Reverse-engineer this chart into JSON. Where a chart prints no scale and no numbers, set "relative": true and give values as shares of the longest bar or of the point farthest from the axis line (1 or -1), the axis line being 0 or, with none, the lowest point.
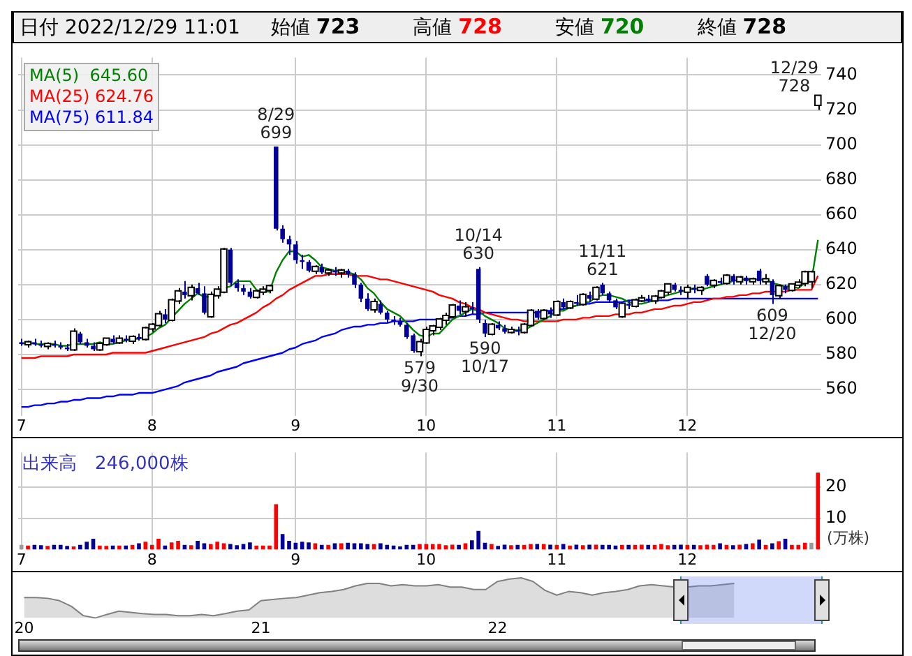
{
  "chart_data": [
    {
      "type": "other",
      "annotations": [
        "日付 2022/12/29 11:01",
        "始値 723",
        "高値 728",
        "安値 720",
        "終値 728"
      ],
      "colors": [
        "#000000",
        "#000000",
        "#ff0000",
        "#008000",
        "#000000"
      ]
    },
    {
      "type": "candlestick",
      "categories": [
        "7",
        null,
        null,
        null,
        null,
        null,
        null,
        null,
        null,
        null,
        null,
        null,
        null,
        null,
        null,
        null,
        null,
        null,
        null,
        null,
        "8",
        null,
        null,
        null,
        null,
        null,
        null,
        null,
        null,
        null,
        null,
        null,
        null,
        null,
        null,
        null,
        null,
        null,
        null,
        null,
        null,
        null,
        "9",
        null,
        null,
        null,
        null,
        null,
        null,
        null,
        null,
        null,
        null,
        null,
        null,
        null,
        null,
        null,
        null,
        null,
        null,
        null,
        "10",
        null,
        null,
        null,
        null,
        null,
        null,
        null,
        null,
        null,
        null,
        null,
        null,
        null,
        null,
        null,
        null,
        null,
        null,
        null,
        "11",
        null,
        null,
        null,
        null,
        null,
        null,
        null,
        null,
        null,
        null,
        null,
        null,
        null,
        null,
        null,
        null,
        null,
        null,
        null,
        "12",
        null,
        null,
        null,
        null,
        null,
        null,
        null,
        null,
        null,
        null,
        null,
        null,
        null,
        null,
        null,
        null,
        null,
        null,
        null,
        null
      ],
      "ohlc": [
        [
          587,
          589,
          585,
          586
        ],
        [
          586,
          588,
          584,
          587
        ],
        [
          587,
          589,
          585,
          586
        ],
        [
          586,
          588,
          584,
          585
        ],
        [
          585,
          587,
          583,
          586
        ],
        [
          586,
          588,
          584,
          585
        ],
        [
          585,
          587,
          583,
          584
        ],
        [
          584,
          586,
          582,
          583
        ],
        [
          583,
          595,
          582,
          593
        ],
        [
          592,
          593,
          586,
          587
        ],
        [
          587,
          589,
          584,
          585
        ],
        [
          585,
          587,
          582,
          583
        ],
        [
          583,
          587,
          582,
          586
        ],
        [
          586,
          589,
          585,
          589
        ],
        [
          589,
          591,
          586,
          587
        ],
        [
          587,
          591,
          586,
          589
        ],
        [
          589,
          591,
          587,
          588
        ],
        [
          588,
          591,
          586,
          590
        ],
        [
          590,
          592,
          588,
          589
        ],
        [
          589,
          596,
          588,
          595
        ],
        [
          595,
          598,
          593,
          597
        ],
        [
          597,
          605,
          596,
          603
        ],
        [
          603,
          606,
          598,
          600
        ],
        [
          600,
          612,
          599,
          611
        ],
        [
          611,
          618,
          609,
          616
        ],
        [
          616,
          622,
          612,
          614
        ],
        [
          614,
          620,
          611,
          618
        ],
        [
          618,
          621,
          614,
          615
        ],
        [
          615,
          619,
          603,
          604
        ],
        [
          602,
          616,
          601,
          614
        ],
        [
          614,
          619,
          612,
          617
        ],
        [
          616,
          641,
          615,
          640
        ],
        [
          640,
          641,
          619,
          621
        ],
        [
          621,
          623,
          616,
          618
        ],
        [
          618,
          620,
          614,
          616
        ],
        [
          616,
          618,
          612,
          613
        ],
        [
          613,
          617,
          612,
          616
        ],
        [
          616,
          619,
          614,
          617
        ],
        [
          617,
          620,
          615,
          619
        ],
        [
          699,
          699,
          651,
          652
        ],
        [
          652,
          654,
          644,
          646
        ],
        [
          646,
          648,
          637,
          643
        ],
        [
          643,
          645,
          632,
          634
        ],
        [
          634,
          637,
          629,
          633
        ],
        [
          633,
          634,
          627,
          628
        ],
        [
          628,
          631,
          626,
          630
        ],
        [
          630,
          632,
          626,
          627
        ],
        [
          627,
          629,
          625,
          628
        ],
        [
          628,
          630,
          625,
          627
        ],
        [
          627,
          629,
          624,
          628
        ],
        [
          628,
          629,
          624,
          626
        ],
        [
          626,
          627,
          618,
          620
        ],
        [
          620,
          621,
          610,
          612
        ],
        [
          612,
          615,
          605,
          606
        ],
        [
          606,
          612,
          604,
          610
        ],
        [
          609,
          611,
          603,
          604
        ],
        [
          604,
          605,
          598,
          600
        ],
        [
          600,
          602,
          597,
          599
        ],
        [
          599,
          601,
          596,
          597
        ],
        [
          597,
          598,
          589,
          590
        ],
        [
          591,
          592,
          581,
          582
        ],
        [
          582,
          589,
          579,
          587
        ],
        [
          587,
          596,
          586,
          594
        ],
        [
          594,
          597,
          591,
          596
        ],
        [
          596,
          601,
          594,
          600
        ],
        [
          600,
          604,
          597,
          602
        ],
        [
          602,
          609,
          601,
          608
        ],
        [
          608,
          611,
          603,
          605
        ],
        [
          605,
          610,
          602,
          607
        ],
        [
          607,
          610,
          603,
          606
        ],
        [
          629,
          630,
          598,
          600
        ],
        [
          598,
          600,
          590,
          592
        ],
        [
          592,
          598,
          591,
          597
        ],
        [
          597,
          599,
          594,
          595
        ],
        [
          595,
          597,
          592,
          593
        ],
        [
          593,
          596,
          592,
          594
        ],
        [
          594,
          596,
          591,
          593
        ],
        [
          593,
          598,
          592,
          597
        ],
        [
          597,
          606,
          596,
          605
        ],
        [
          605,
          606,
          600,
          601
        ],
        [
          601,
          606,
          600,
          605
        ],
        [
          605,
          607,
          601,
          603
        ],
        [
          603,
          611,
          602,
          610
        ],
        [
          610,
          612,
          606,
          607
        ],
        [
          607,
          611,
          606,
          610
        ],
        [
          610,
          614,
          608,
          609
        ],
        [
          609,
          615,
          608,
          614
        ],
        [
          614,
          616,
          610,
          612
        ],
        [
          612,
          619,
          611,
          618
        ],
        [
          620,
          621,
          614,
          615
        ],
        [
          615,
          616,
          610,
          611
        ],
        [
          611,
          612,
          606,
          607
        ],
        [
          602,
          610,
          601,
          609
        ],
        [
          609,
          611,
          606,
          608
        ],
        [
          608,
          612,
          607,
          611
        ],
        [
          611,
          614,
          610,
          612
        ],
        [
          612,
          614,
          610,
          611
        ],
        [
          611,
          614,
          609,
          613
        ],
        [
          613,
          617,
          612,
          616
        ],
        [
          616,
          620,
          614,
          620
        ],
        [
          620,
          621,
          616,
          617
        ],
        [
          617,
          619,
          614,
          616
        ],
        [
          616,
          620,
          612,
          618
        ],
        [
          618,
          620,
          615,
          617
        ],
        [
          617,
          619,
          614,
          618
        ],
        [
          625,
          626,
          619,
          620
        ],
        [
          620,
          623,
          618,
          622
        ],
        [
          622,
          624,
          620,
          621
        ],
        [
          621,
          626,
          620,
          625
        ],
        [
          625,
          626,
          620,
          622
        ],
        [
          622,
          625,
          620,
          624
        ],
        [
          624,
          625,
          620,
          622
        ],
        [
          622,
          624,
          620,
          623
        ],
        [
          628,
          629,
          620,
          622
        ],
        [
          622,
          626,
          620,
          623
        ],
        [
          622,
          623,
          609,
          614
        ],
        [
          614,
          620,
          612,
          619
        ],
        [
          619,
          620,
          615,
          617
        ],
        [
          617,
          620,
          616,
          620
        ],
        [
          620,
          623,
          618,
          621
        ],
        [
          621,
          628,
          619,
          627
        ],
        [
          622,
          628,
          618,
          627
        ],
        [
          723,
          728,
          720,
          728
        ]
      ],
      "colors": [
        "#000099",
        "#ffffff",
        "#000099",
        "#000099",
        "#ffffff",
        "#000099",
        "#000099",
        "#000099",
        "#ffffff",
        "#000099",
        "#000099",
        "#000099",
        "#ffffff",
        "#ffffff",
        "#000099",
        "#ffffff",
        "#000099",
        "#ffffff",
        "#000099",
        "#ffffff",
        "#ffffff",
        "#ffffff",
        "#000099",
        "#ffffff",
        "#ffffff",
        "#000099",
        "#ffffff",
        "#000099",
        "#000099",
        "#ffffff",
        "#ffffff",
        "#ffffff",
        "#000099",
        "#000099",
        "#000099",
        "#000099",
        "#ffffff",
        "#ffffff",
        "#ffffff",
        "#000099",
        "#000099",
        "#000099",
        "#000099",
        "#000099",
        "#000099",
        "#ffffff",
        "#000099",
        "#ffffff",
        "#000099",
        "#ffffff",
        "#000099",
        "#000099",
        "#000099",
        "#000099",
        "#ffffff",
        "#000099",
        "#000099",
        "#000099",
        "#000099",
        "#000099",
        "#000099",
        "#ffffff",
        "#ffffff",
        "#ffffff",
        "#ffffff",
        "#ffffff",
        "#ffffff",
        "#000099",
        "#ffffff",
        "#000099",
        "#000099",
        "#000099",
        "#ffffff",
        "#000099",
        "#000099",
        "#ffffff",
        "#000099",
        "#ffffff",
        "#ffffff",
        "#000099",
        "#ffffff",
        "#000099",
        "#ffffff",
        "#000099",
        "#ffffff",
        "#000099",
        "#ffffff",
        "#000099",
        "#ffffff",
        "#000099",
        "#000099",
        "#000099",
        "#ffffff",
        "#000099",
        "#ffffff",
        "#ffffff",
        "#000099",
        "#ffffff",
        "#ffffff",
        "#ffffff",
        "#000099",
        "#000099",
        "#ffffff",
        "#000099",
        "#ffffff",
        "#000099",
        "#ffffff",
        "#000099",
        "#ffffff",
        "#000099",
        "#ffffff",
        "#000099",
        "#ffffff",
        "#000099",
        "#ffffff",
        "#000099",
        "#ffffff",
        "#000099",
        "#ffffff",
        "#ffffff",
        "#ffffff",
        "#ffffff",
        "#ffffff"
      ],
      "series": [
        {
          "type": "line",
          "name": "MA(5)  645.60",
          "color": "#008000",
          "values": [
            586,
            587,
            586,
            586,
            586,
            586,
            585,
            585,
            586,
            586,
            586,
            586,
            587,
            586,
            586,
            587,
            588,
            589,
            589,
            590,
            592,
            595,
            597,
            601,
            605,
            609,
            612,
            615,
            613,
            613,
            614,
            618,
            619,
            622,
            622,
            622,
            617,
            616,
            616,
            627,
            634,
            639,
            639,
            636,
            637,
            634,
            630,
            629,
            628,
            628,
            627,
            626,
            623,
            618,
            615,
            610,
            606,
            604,
            602,
            598,
            594,
            591,
            590,
            592,
            592,
            596,
            600,
            602,
            604,
            606,
            605,
            602,
            600,
            598,
            595,
            594,
            594,
            594,
            596,
            598,
            600,
            602,
            605,
            605,
            607,
            608,
            610,
            610,
            613,
            614,
            614,
            613,
            612,
            610,
            609,
            609,
            610,
            611,
            613,
            614,
            615,
            616,
            617,
            618,
            617,
            618,
            619,
            620,
            621,
            622,
            623,
            623,
            623,
            623,
            623,
            621,
            620,
            619,
            619,
            618,
            621,
            622,
            645.6
          ]
        },
        {
          "type": "line",
          "name": "MA(25) 624.76",
          "color": "#ff0000",
          "values": [
            578,
            578,
            578,
            579,
            579,
            579,
            579,
            579,
            580,
            580,
            580,
            580,
            580,
            580,
            581,
            581,
            581,
            581,
            581,
            581,
            582,
            583,
            584,
            585,
            586,
            587,
            588,
            589,
            590,
            592,
            593,
            595,
            597,
            598,
            600,
            602,
            604,
            607,
            609,
            612,
            614,
            617,
            619,
            621,
            623,
            625,
            625,
            626,
            626,
            626,
            626,
            625,
            625,
            625,
            624,
            623,
            623,
            622,
            621,
            620,
            619,
            618,
            617,
            616,
            614,
            613,
            612,
            610,
            609,
            607,
            606,
            604,
            603,
            602,
            601,
            600,
            600,
            599,
            599,
            599,
            599,
            599,
            599,
            600,
            600,
            600,
            601,
            601,
            602,
            602,
            602,
            603,
            603,
            603,
            604,
            604,
            605,
            606,
            606,
            607,
            608,
            608,
            609,
            610,
            610,
            611,
            612,
            612,
            613,
            613,
            614,
            614,
            615,
            615,
            616,
            616,
            616,
            616,
            617,
            617,
            617,
            617,
            625
          ]
        },
        {
          "type": "line",
          "name": "MA(75) 611.84",
          "color": "#0000ff",
          "values": [
            550,
            550,
            551,
            551,
            552,
            552,
            553,
            553,
            554,
            554,
            555,
            555,
            555,
            556,
            556,
            557,
            557,
            557,
            558,
            558,
            558,
            559,
            560,
            561,
            562,
            564,
            565,
            566,
            567,
            568,
            570,
            571,
            572,
            573,
            575,
            576,
            577,
            578,
            579,
            580,
            581,
            583,
            584,
            586,
            587,
            588,
            590,
            591,
            592,
            594,
            595,
            596,
            596,
            597,
            597,
            598,
            598,
            599,
            599,
            599,
            599,
            600,
            600,
            600,
            600,
            601,
            601,
            602,
            602,
            603,
            603,
            604,
            604,
            604,
            604,
            604,
            604,
            604,
            604,
            604,
            605,
            605,
            606,
            606,
            607,
            608,
            609,
            609,
            610,
            610,
            610,
            610,
            610,
            611,
            611,
            611,
            611,
            611,
            611,
            611,
            612,
            612,
            612,
            612,
            612,
            612,
            612,
            612,
            612,
            612,
            612,
            612,
            612,
            612,
            612,
            612,
            612,
            612,
            612,
            612,
            612,
            612,
            612
          ]
        }
      ],
      "ylim": [
        545,
        750
      ],
      "yticks": [
        560,
        580,
        600,
        620,
        640,
        660,
        680,
        700,
        720,
        740
      ],
      "grid": true,
      "legend": "top left",
      "annotations": [
        {
          "text": "8/29\n699",
          "y": 699
        },
        {
          "text": "579\n9/30",
          "y": 579
        },
        {
          "text": "10/14\n630",
          "y": 630
        },
        {
          "text": "590\n10/17",
          "y": 590
        },
        {
          "text": "11/11\n621",
          "y": 621
        },
        {
          "text": "609\n12/20",
          "y": 609
        },
        "12/29\n728"
      ]
    },
    {
      "type": "bar",
      "title": "出来高　246,000株",
      "ylabel": "(万株)",
      "categories": [
        "7",
        null,
        null,
        null,
        null,
        null,
        null,
        null,
        null,
        null,
        null,
        null,
        null,
        null,
        null,
        null,
        null,
        null,
        null,
        null,
        "8",
        null,
        null,
        null,
        null,
        null,
        null,
        null,
        null,
        null,
        null,
        null,
        null,
        null,
        null,
        null,
        null,
        null,
        null,
        null,
        null,
        null,
        "9",
        null,
        null,
        null,
        null,
        null,
        null,
        null,
        null,
        null,
        null,
        null,
        null,
        null,
        null,
        null,
        null,
        null,
        null,
        null,
        "10",
        null,
        null,
        null,
        null,
        null,
        null,
        null,
        null,
        null,
        null,
        null,
        null,
        null,
        null,
        null,
        null,
        null,
        null,
        null,
        "11",
        null,
        null,
        null,
        null,
        null,
        null,
        null,
        null,
        null,
        null,
        null,
        null,
        null,
        null,
        null,
        null,
        null,
        null,
        null,
        "12",
        null,
        null,
        null,
        null,
        null,
        null,
        null,
        null,
        null,
        null,
        null,
        null,
        null,
        null,
        null,
        null,
        null,
        null,
        null,
        null
      ],
      "values": [
        1.5,
        1.3,
        1.5,
        1.4,
        1.2,
        1.5,
        1.5,
        1.2,
        1.0,
        1.5,
        2.5,
        3.5,
        1.3,
        1.2,
        1.3,
        1.3,
        1.3,
        1.5,
        2.0,
        2.5,
        1.5,
        3.5,
        1.3,
        2.3,
        2.8,
        1.5,
        1.4,
        2.8,
        2.0,
        1.8,
        2.5,
        2.0,
        1.8,
        1.4,
        1.8,
        2.3,
        1.3,
        1.3,
        1.3,
        14.5,
        5.0,
        2.8,
        2.2,
        2.5,
        2.3,
        2.0,
        1.5,
        1.5,
        2.0,
        2.0,
        2.2,
        2.0,
        2.0,
        1.8,
        1.8,
        2.0,
        1.5,
        1.3,
        1.0,
        1.5,
        1.5,
        1.8,
        1.8,
        1.8,
        1.8,
        1.4,
        1.6,
        1.5,
        2.0,
        3.0,
        6.0,
        2.2,
        1.8,
        1.2,
        1.6,
        1.4,
        1.5,
        1.5,
        1.8,
        1.8,
        1.8,
        1.6,
        1.5,
        1.8,
        1.3,
        1.6,
        1.4,
        1.6,
        1.6,
        1.5,
        1.5,
        1.3,
        1.5,
        1.5,
        1.5,
        1.6,
        1.5,
        1.5,
        1.8,
        1.4,
        1.5,
        1.6,
        1.5,
        1.5,
        1.4,
        1.6,
        1.5,
        2.0,
        1.5,
        1.4,
        1.6,
        1.8,
        2.0,
        3.2,
        1.5,
        2.0,
        2.7,
        3.5,
        1.5,
        1.5,
        2.2,
        2.2,
        24.6
      ],
      "colors": [
        "#999999",
        "#ff0000",
        "#000099",
        "#000099",
        "#ff0000",
        "#000099",
        "#000099",
        "#000099",
        "#ff0000",
        "#000099",
        "#000099",
        "#000099",
        "#ff0000",
        "#ff0000",
        "#000099",
        "#ff0000",
        "#000099",
        "#ff0000",
        "#000099",
        "#ff0000",
        "#ff0000",
        "#ff0000",
        "#000099",
        "#ff0000",
        "#ff0000",
        "#000099",
        "#ff0000",
        "#000099",
        "#000099",
        "#ff0000",
        "#ff0000",
        "#ff0000",
        "#000099",
        "#000099",
        "#000099",
        "#000099",
        "#ff0000",
        "#ff0000",
        "#ff0000",
        "#ff0000",
        "#000099",
        "#000099",
        "#000099",
        "#000099",
        "#000099",
        "#ff0000",
        "#000099",
        "#ff0000",
        "#000099",
        "#ff0000",
        "#000099",
        "#000099",
        "#000099",
        "#000099",
        "#ff0000",
        "#000099",
        "#000099",
        "#000099",
        "#000099",
        "#000099",
        "#000099",
        "#ff0000",
        "#ff0000",
        "#ff0000",
        "#ff0000",
        "#ff0000",
        "#ff0000",
        "#000099",
        "#ff0000",
        "#000099",
        "#000099",
        "#000099",
        "#ff0000",
        "#000099",
        "#000099",
        "#ff0000",
        "#000099",
        "#ff0000",
        "#ff0000",
        "#000099",
        "#ff0000",
        "#000099",
        "#ff0000",
        "#000099",
        "#ff0000",
        "#000099",
        "#ff0000",
        "#000099",
        "#ff0000",
        "#000099",
        "#000099",
        "#000099",
        "#ff0000",
        "#000099",
        "#ff0000",
        "#ff0000",
        "#000099",
        "#ff0000",
        "#ff0000",
        "#ff0000",
        "#000099",
        "#000099",
        "#ff0000",
        "#000099",
        "#ff0000",
        "#ff0000",
        "#ff0000",
        "#000099",
        "#ff0000",
        "#000099",
        "#ff0000",
        "#000099",
        "#ff0000",
        "#000099",
        "#ff0000",
        "#000099",
        "#ff0000",
        "#000099",
        "#ff0000",
        "#ff0000",
        "#ff0000",
        "#999999",
        "#ff0000"
      ],
      "ylim": [
        0,
        31
      ],
      "yticks": [
        10,
        20
      ],
      "grid": true
    },
    {
      "type": "area",
      "relative": true,
      "categories": [
        "20",
        null,
        null,
        null,
        null,
        null,
        null,
        null,
        null,
        null,
        null,
        null,
        null,
        null,
        null,
        null,
        null,
        null,
        null,
        null,
        "21",
        null,
        null,
        null,
        null,
        null,
        null,
        null,
        null,
        null,
        null,
        null,
        null,
        null,
        null,
        null,
        null,
        null,
        null,
        null,
        "22",
        null,
        null,
        null,
        null,
        null,
        null,
        null,
        null,
        null,
        null,
        null,
        null,
        null,
        null,
        null,
        null,
        null,
        null,
        null,
        null
      ],
      "values": [
        0.51,
        0.51,
        0.49,
        0.43,
        0.29,
        0.06,
        0,
        0.09,
        0.17,
        0.14,
        0.11,
        0.09,
        0.09,
        0.06,
        0.06,
        0.09,
        0.06,
        0.11,
        0.17,
        0.2,
        0.43,
        0.46,
        0.49,
        0.51,
        0.57,
        0.63,
        0.66,
        0.71,
        0.8,
        0.86,
        0.86,
        0.8,
        0.83,
        0.8,
        0.8,
        0.83,
        0.77,
        0.77,
        0.71,
        0.71,
        0.91,
        0.97,
        1,
        0.91,
        0.69,
        0.57,
        0.66,
        0.63,
        0.57,
        0.63,
        0.66,
        0.71,
        0.8,
        0.83,
        0.8,
        0.77,
        0.77,
        0.8,
        0.8,
        0.83,
        0.86
      ],
      "color": "#808080"
    }
  ]
}
